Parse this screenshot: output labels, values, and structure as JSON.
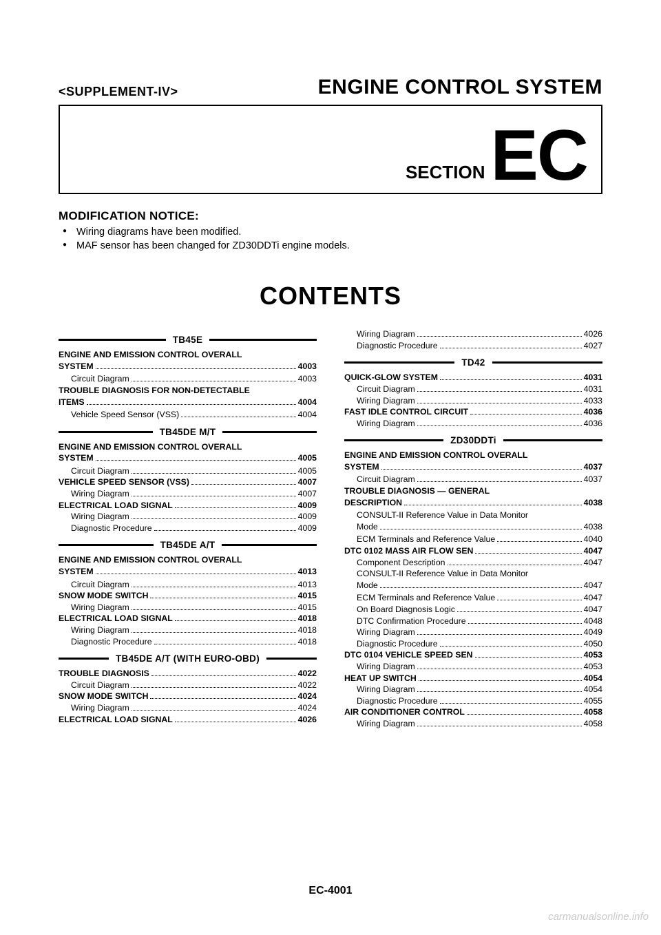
{
  "header": {
    "supplement": "<SUPPLEMENT-IV>",
    "title": "ENGINE CONTROL SYSTEM",
    "section_label": "SECTION",
    "section_code": "EC"
  },
  "modification": {
    "title": "MODIFICATION NOTICE:",
    "items": [
      "Wiring diagrams have been modified.",
      "MAF sensor has been changed for ZD30DDTi engine models."
    ]
  },
  "contents_title": "CONTENTS",
  "toc": {
    "left": [
      {
        "type": "heading",
        "text": "TB45E"
      },
      {
        "type": "l1wrap",
        "label": "ENGINE AND EMISSION CONTROL OVERALL",
        "tail": "SYSTEM",
        "page": "4003"
      },
      {
        "type": "l2",
        "label": "Circuit Diagram",
        "page": "4003"
      },
      {
        "type": "l1wrap",
        "label": "TROUBLE DIAGNOSIS FOR NON-DETECTABLE",
        "tail": "ITEMS",
        "page": "4004"
      },
      {
        "type": "l2",
        "label": "Vehicle Speed Sensor (VSS)",
        "page": "4004"
      },
      {
        "type": "heading",
        "text": "TB45DE M/T"
      },
      {
        "type": "l1wrap",
        "label": "ENGINE AND EMISSION CONTROL OVERALL",
        "tail": "SYSTEM",
        "page": "4005"
      },
      {
        "type": "l2",
        "label": "Circuit Diagram",
        "page": "4005"
      },
      {
        "type": "l1",
        "label": "VEHICLE SPEED SENSOR (VSS)",
        "page": "4007"
      },
      {
        "type": "l2",
        "label": "Wiring Diagram",
        "page": "4007"
      },
      {
        "type": "l1",
        "label": "ELECTRICAL LOAD SIGNAL",
        "page": "4009"
      },
      {
        "type": "l2",
        "label": "Wiring Diagram",
        "page": "4009"
      },
      {
        "type": "l2",
        "label": "Diagnostic Procedure",
        "page": "4009"
      },
      {
        "type": "heading",
        "text": "TB45DE A/T"
      },
      {
        "type": "l1wrap",
        "label": "ENGINE AND EMISSION CONTROL OVERALL",
        "tail": "SYSTEM",
        "page": "4013"
      },
      {
        "type": "l2",
        "label": "Circuit Diagram",
        "page": "4013"
      },
      {
        "type": "l1",
        "label": "SNOW MODE SWITCH",
        "page": "4015"
      },
      {
        "type": "l2",
        "label": "Wiring Diagram",
        "page": "4015"
      },
      {
        "type": "l1",
        "label": "ELECTRICAL LOAD SIGNAL",
        "page": "4018"
      },
      {
        "type": "l2",
        "label": "Wiring Diagram",
        "page": "4018"
      },
      {
        "type": "l2",
        "label": "Diagnostic Procedure",
        "page": "4018"
      },
      {
        "type": "heading",
        "text": "TB45DE A/T (WITH EURO-OBD)"
      },
      {
        "type": "l1",
        "label": "TROUBLE DIAGNOSIS",
        "page": "4022"
      },
      {
        "type": "l2",
        "label": "Circuit Diagram",
        "page": "4022"
      },
      {
        "type": "l1",
        "label": "SNOW MODE SWITCH",
        "page": "4024"
      },
      {
        "type": "l2",
        "label": "Wiring Diagram",
        "page": "4024"
      },
      {
        "type": "l1",
        "label": "ELECTRICAL LOAD SIGNAL",
        "page": "4026"
      }
    ],
    "right": [
      {
        "type": "l2",
        "label": "Wiring Diagram",
        "page": "4026"
      },
      {
        "type": "l2",
        "label": "Diagnostic Procedure",
        "page": "4027"
      },
      {
        "type": "heading",
        "text": "TD42"
      },
      {
        "type": "l1",
        "label": "QUICK-GLOW SYSTEM",
        "page": "4031"
      },
      {
        "type": "l2",
        "label": "Circuit Diagram",
        "page": "4031"
      },
      {
        "type": "l2",
        "label": "Wiring Diagram",
        "page": "4033"
      },
      {
        "type": "l1",
        "label": "FAST IDLE CONTROL CIRCUIT",
        "page": "4036"
      },
      {
        "type": "l2",
        "label": "Wiring Diagram",
        "page": "4036"
      },
      {
        "type": "heading",
        "text": "ZD30DDTi"
      },
      {
        "type": "l1wrap",
        "label": "ENGINE AND EMISSION CONTROL OVERALL",
        "tail": "SYSTEM",
        "page": "4037"
      },
      {
        "type": "l2",
        "label": "Circuit Diagram",
        "page": "4037"
      },
      {
        "type": "l1wrap",
        "label": "TROUBLE DIAGNOSIS — GENERAL",
        "tail": "DESCRIPTION",
        "page": "4038"
      },
      {
        "type": "l2wrap",
        "label": "CONSULT-II Reference Value in Data Monitor",
        "tail": "Mode",
        "page": "4038"
      },
      {
        "type": "l2",
        "label": "ECM Terminals and Reference Value",
        "page": "4040"
      },
      {
        "type": "l1",
        "label": "DTC 0102 MASS AIR FLOW SEN",
        "page": "4047"
      },
      {
        "type": "l2",
        "label": "Component Description",
        "page": "4047"
      },
      {
        "type": "l2wrap",
        "label": "CONSULT-II Reference Value in Data Monitor",
        "tail": "Mode",
        "page": "4047"
      },
      {
        "type": "l2",
        "label": "ECM Terminals and Reference Value",
        "page": "4047"
      },
      {
        "type": "l2",
        "label": "On Board Diagnosis Logic",
        "page": "4047"
      },
      {
        "type": "l2",
        "label": "DTC Confirmation Procedure",
        "page": "4048"
      },
      {
        "type": "l2",
        "label": "Wiring Diagram",
        "page": "4049"
      },
      {
        "type": "l2",
        "label": "Diagnostic Procedure",
        "page": "4050"
      },
      {
        "type": "l1",
        "label": "DTC 0104 VEHICLE SPEED SEN",
        "page": "4053"
      },
      {
        "type": "l2",
        "label": "Wiring Diagram",
        "page": "4053"
      },
      {
        "type": "l1",
        "label": "HEAT UP SWITCH",
        "page": "4054"
      },
      {
        "type": "l2",
        "label": "Wiring Diagram",
        "page": "4054"
      },
      {
        "type": "l2",
        "label": "Diagnostic Procedure",
        "page": "4055"
      },
      {
        "type": "l1",
        "label": "AIR CONDITIONER CONTROL",
        "page": "4058"
      },
      {
        "type": "l2",
        "label": "Wiring Diagram",
        "page": "4058"
      }
    ]
  },
  "page_number": "EC-4001",
  "watermark": "carmanualsonline.info",
  "colors": {
    "page_bg": "#ffffff",
    "app_bg": "#404040",
    "text": "#000000",
    "watermark": "rgba(0,0,0,0.22)"
  },
  "typography": {
    "main_title_pt": 30,
    "section_code_pt": 104,
    "contents_title_pt": 36,
    "body_pt": 12.3
  }
}
